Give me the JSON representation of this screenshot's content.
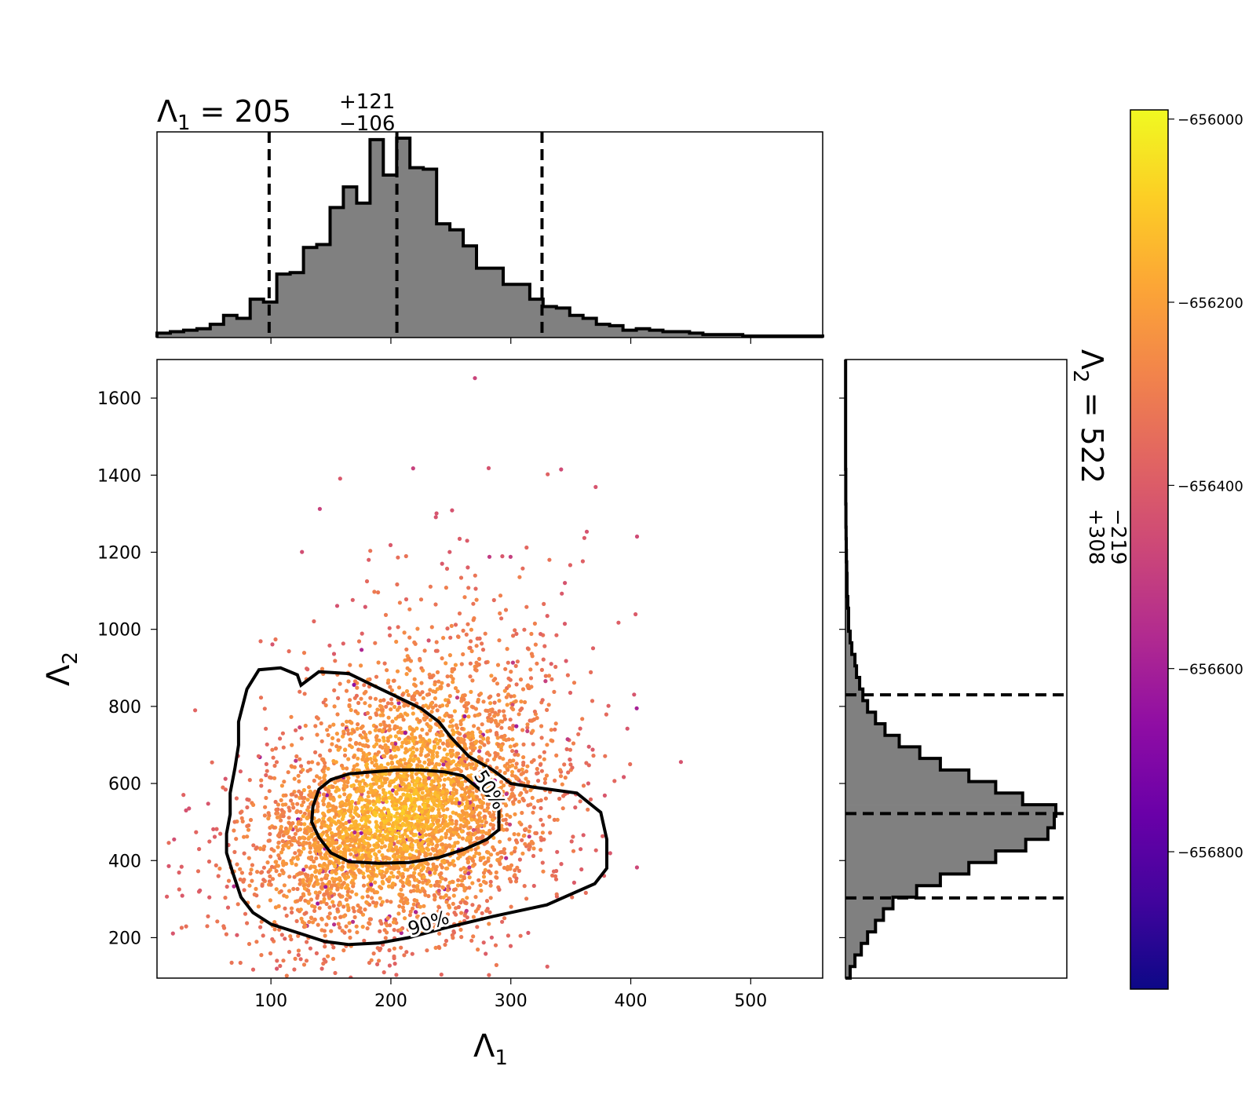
{
  "chart_data": [
    {
      "type": "scatter",
      "panel": "joint",
      "xlabel": "Λ",
      "xlabel_sub": "1",
      "ylabel": "Λ",
      "ylabel_sub": "2",
      "xlim": [
        5,
        560
      ],
      "ylim": [
        95,
        1700
      ],
      "xticks": [
        100,
        200,
        300,
        400,
        500
      ],
      "yticks": [
        200,
        400,
        600,
        800,
        1000,
        1200,
        1400,
        1600
      ],
      "color_by": "log-likelihood",
      "colormap": "plasma",
      "point_cloud": {
        "center": [
          205,
          522
        ],
        "n_points": 4200
      },
      "contours": [
        {
          "label": "50%",
          "path": [
            [
              135,
              540
            ],
            [
              140,
              585
            ],
            [
              150,
              610
            ],
            [
              165,
              625
            ],
            [
              185,
              630
            ],
            [
              205,
              635
            ],
            [
              225,
              635
            ],
            [
              245,
              630
            ],
            [
              260,
              620
            ],
            [
              268,
              600
            ],
            [
              280,
              570
            ],
            [
              290,
              540
            ],
            [
              290,
              505
            ],
            [
              290,
              480
            ],
            [
              280,
              455
            ],
            [
              262,
              430
            ],
            [
              240,
              408
            ],
            [
              215,
              395
            ],
            [
              190,
              393
            ],
            [
              165,
              397
            ],
            [
              150,
              420
            ],
            [
              140,
              460
            ],
            [
              134,
              500
            ],
            [
              135,
              540
            ]
          ]
        },
        {
          "label": "90%",
          "path": [
            [
              125,
              855
            ],
            [
              122,
              882
            ],
            [
              108,
              900
            ],
            [
              90,
              895
            ],
            [
              80,
              845
            ],
            [
              73,
              760
            ],
            [
              73,
              700
            ],
            [
              70,
              640
            ],
            [
              66,
              575
            ],
            [
              66,
              520
            ],
            [
              63,
              470
            ],
            [
              63,
              420
            ],
            [
              68,
              370
            ],
            [
              75,
              305
            ],
            [
              85,
              265
            ],
            [
              100,
              235
            ],
            [
              125,
              210
            ],
            [
              145,
              190
            ],
            [
              165,
              182
            ],
            [
              190,
              186
            ],
            [
              215,
              200
            ],
            [
              245,
              225
            ],
            [
              285,
              255
            ],
            [
              330,
              285
            ],
            [
              370,
              340
            ],
            [
              380,
              380
            ],
            [
              380,
              455
            ],
            [
              375,
              525
            ],
            [
              355,
              575
            ],
            [
              320,
              590
            ],
            [
              300,
              600
            ],
            [
              285,
              635
            ],
            [
              265,
              670
            ],
            [
              250,
              720
            ],
            [
              240,
              760
            ],
            [
              225,
              795
            ],
            [
              205,
              825
            ],
            [
              185,
              855
            ],
            [
              165,
              885
            ],
            [
              140,
              890
            ],
            [
              125,
              855
            ]
          ]
        }
      ]
    },
    {
      "type": "bar",
      "panel": "marginal-top",
      "title": "Λ",
      "title_sub": "1",
      "title_value": " = 205",
      "title_plus": "+121",
      "title_minus": "−106",
      "xlim": [
        5,
        560
      ],
      "bin_width": 11.1,
      "edges": [
        5,
        16.1,
        27.2,
        38.3,
        49.4,
        60.5,
        71.6,
        82.7,
        93.8,
        104.9,
        116,
        127.1,
        138.2,
        149.3,
        160.4,
        171.5,
        182.6,
        193.7,
        204.8,
        215.9,
        227,
        238.1,
        249.2,
        260.3,
        271.4,
        282.5,
        293.6,
        304.7,
        315.8,
        326.9,
        338,
        349.1,
        360.2,
        371.3,
        382.4,
        393.5,
        404.6,
        415.7,
        426.8,
        437.9,
        449,
        460.1,
        471.2,
        482.3,
        493.4,
        504.5,
        515.6,
        526.7,
        537.8,
        548.9,
        560
      ],
      "counts": [
        3,
        4,
        5,
        6,
        9,
        15,
        13,
        26,
        24,
        43,
        44,
        61,
        63,
        88,
        102,
        91,
        134,
        110,
        135,
        115,
        114,
        77,
        73,
        62,
        47,
        47,
        36,
        36,
        26,
        21,
        20,
        15,
        13,
        9,
        8,
        5,
        6,
        5,
        4,
        4,
        3,
        2,
        2,
        2,
        1,
        1,
        1,
        1,
        1,
        1
      ],
      "quantile_lines": [
        98.5,
        205,
        326
      ]
    },
    {
      "type": "bar",
      "panel": "marginal-right",
      "orientation": "horizontal",
      "title": "Λ",
      "title_sub": "2",
      "title_value": " = 522",
      "title_plus": "+308",
      "title_minus": "−219",
      "ylim": [
        95,
        1700
      ],
      "edges": [
        95,
        125,
        155,
        185,
        215,
        245,
        275,
        305,
        335,
        365,
        395,
        425,
        455,
        485,
        515,
        545,
        575,
        605,
        635,
        665,
        695,
        725,
        755,
        785,
        815,
        845,
        875,
        905,
        935,
        965,
        995,
        1025,
        1055,
        1085,
        1115,
        1145,
        1175,
        1205,
        1235,
        1265,
        1295,
        1325,
        1355,
        1385,
        1415,
        1445,
        1475,
        1505,
        1535,
        1565,
        1595,
        1625,
        1655,
        1700
      ],
      "counts": [
        3,
        6,
        10,
        14,
        19,
        24,
        30,
        45,
        60,
        78,
        95,
        114,
        128,
        132,
        133,
        112,
        95,
        78,
        60,
        47,
        34,
        25,
        19,
        14,
        11,
        9,
        7,
        6,
        4,
        3,
        2,
        2,
        1.5,
        1,
        1,
        0.8,
        0.6,
        0.5,
        0.4,
        0.3,
        0.3,
        0.2,
        0.2,
        0.2,
        0.1,
        0.1,
        0.1,
        0.1,
        0.1,
        0.1,
        0.1,
        0.1,
        0.1
      ],
      "quantile_lines": [
        303,
        522,
        830
      ]
    },
    {
      "type": "heatmap",
      "panel": "colorbar",
      "colormap": "plasma",
      "range": [
        -656950,
        -655990
      ],
      "ticks": [
        -656000,
        -656200,
        -656400,
        -656600,
        -656800
      ],
      "tick_labels": [
        "−656000",
        "−656200",
        "−656400",
        "−656600",
        "−656800"
      ]
    }
  ]
}
